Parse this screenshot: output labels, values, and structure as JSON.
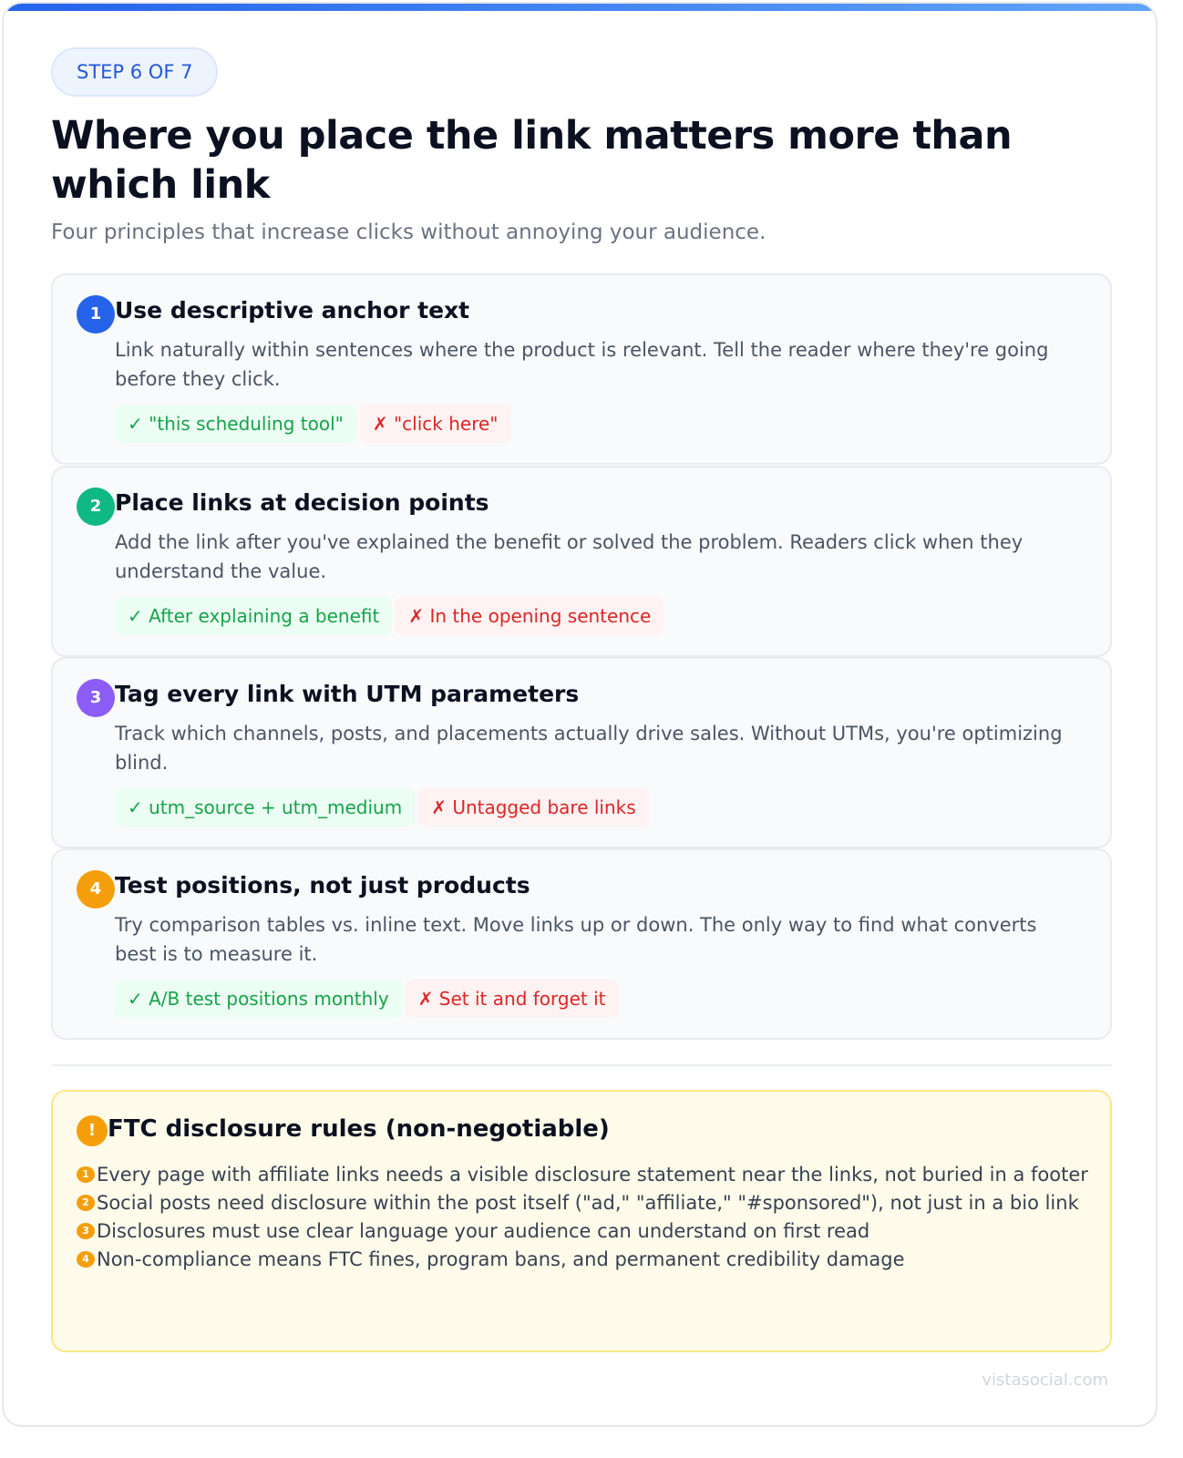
{
  "step_badge": "STEP 6 OF 7",
  "title": "Where you place the link matters more than which link",
  "subtitle": "Four principles that increase clicks without annoying your audience.",
  "principles": [
    {
      "number": "1",
      "color": "#2563eb",
      "heading": "Use descriptive anchor text",
      "body": "Link naturally within sentences where the product is relevant. Tell the reader where they're going before they click.",
      "good": "✓ \"this scheduling tool\"",
      "bad": "✗ \"click here\""
    },
    {
      "number": "2",
      "color": "#10b981",
      "heading": "Place links at decision points",
      "body": "Add the link after you've explained the benefit or solved the problem. Readers click when they understand the value.",
      "good": "✓ After explaining a benefit",
      "bad": "✗ In the opening sentence"
    },
    {
      "number": "3",
      "color": "#8b5cf6",
      "heading": "Tag every link with UTM parameters",
      "body": "Track which channels, posts, and placements actually drive sales. Without UTMs, you're optimizing blind.",
      "good": "✓ utm_source + utm_medium",
      "bad": "✗ Untagged bare links"
    },
    {
      "number": "4",
      "color": "#f59e0b",
      "heading": "Test positions, not just products",
      "body": "Try comparison tables vs. inline text. Move links up or down. The only way to find what converts best is to measure it.",
      "good": "✓ A/B test positions monthly",
      "bad": "✗ Set it and forget it"
    }
  ],
  "ftc": {
    "icon": "!",
    "heading": "FTC disclosure rules (non-negotiable)",
    "items": [
      {
        "n": "1",
        "text": "Every page with affiliate links needs a visible disclosure statement near the links, not buried in a footer"
      },
      {
        "n": "2",
        "text": "Social posts need disclosure within the post itself (\"ad,\" \"affiliate,\" \"#sponsored\"), not just in a bio link"
      },
      {
        "n": "3",
        "text": "Disclosures must use clear language your audience can understand on first read"
      },
      {
        "n": "4",
        "text": "Non-compliance means FTC fines, program bans, and permanent credibility damage"
      }
    ]
  },
  "footer": "vistasocial.com"
}
